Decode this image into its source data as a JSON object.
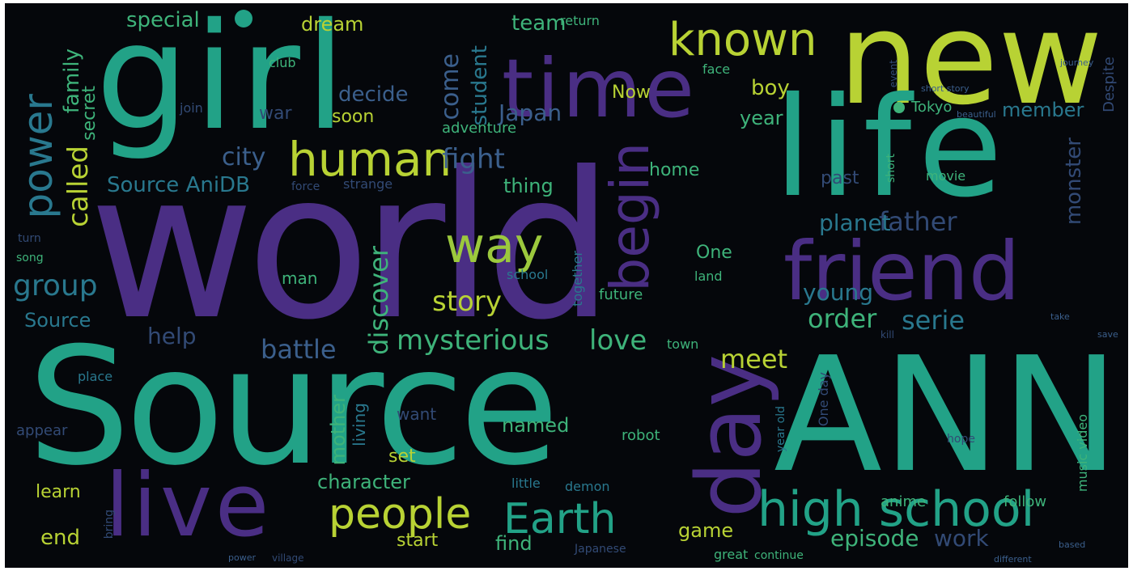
{
  "palette": {
    "background": "#05070b",
    "purple": "#4a2e84",
    "teal": "#22a287",
    "green": "#3eb37a",
    "lime": "#b8d234",
    "olive": "#9cc93d",
    "blue": "#3b5f8c",
    "slate": "#324a75",
    "cyan": "#29788e"
  },
  "words": [
    "world",
    "Source",
    "ANN",
    "girl",
    "new",
    "life",
    "friend",
    "time",
    "day",
    "live",
    "begin",
    "human",
    "known",
    "high school",
    "people",
    "Earth",
    "way",
    "power",
    "mysterious",
    "love",
    "group",
    "story",
    "fight",
    "Japan",
    "city",
    "Source AniDB",
    "battle",
    "meet",
    "order",
    "serie",
    "father",
    "young",
    "planet",
    "episode",
    "work",
    "discover",
    "help",
    "called",
    "family",
    "secret",
    "special",
    "dream",
    "team",
    "Now",
    "come",
    "student",
    "decide",
    "war",
    "soon",
    "adventure",
    "boy",
    "member",
    "Tokyo",
    "year",
    "past",
    "home",
    "thing",
    "monster",
    "character",
    "learn",
    "end",
    "start",
    "find",
    "game",
    "mother",
    "named",
    "set",
    "robot",
    "living",
    "want",
    "man",
    "One",
    "future",
    "school",
    "together",
    "Source",
    "appear",
    "place",
    "little",
    "demon",
    "anime",
    "follow",
    "music video",
    "Despite",
    "return",
    "club",
    "face",
    "join",
    "strange",
    "force",
    "movie",
    "short",
    "land",
    "town",
    "One day",
    "year old",
    "hope",
    "great",
    "continue",
    "village",
    "Japanese",
    "kill",
    "song",
    "turn",
    "bring",
    "short story",
    "event",
    "beautiful",
    "different",
    "based",
    "take",
    "save",
    "journey",
    "power"
  ]
}
